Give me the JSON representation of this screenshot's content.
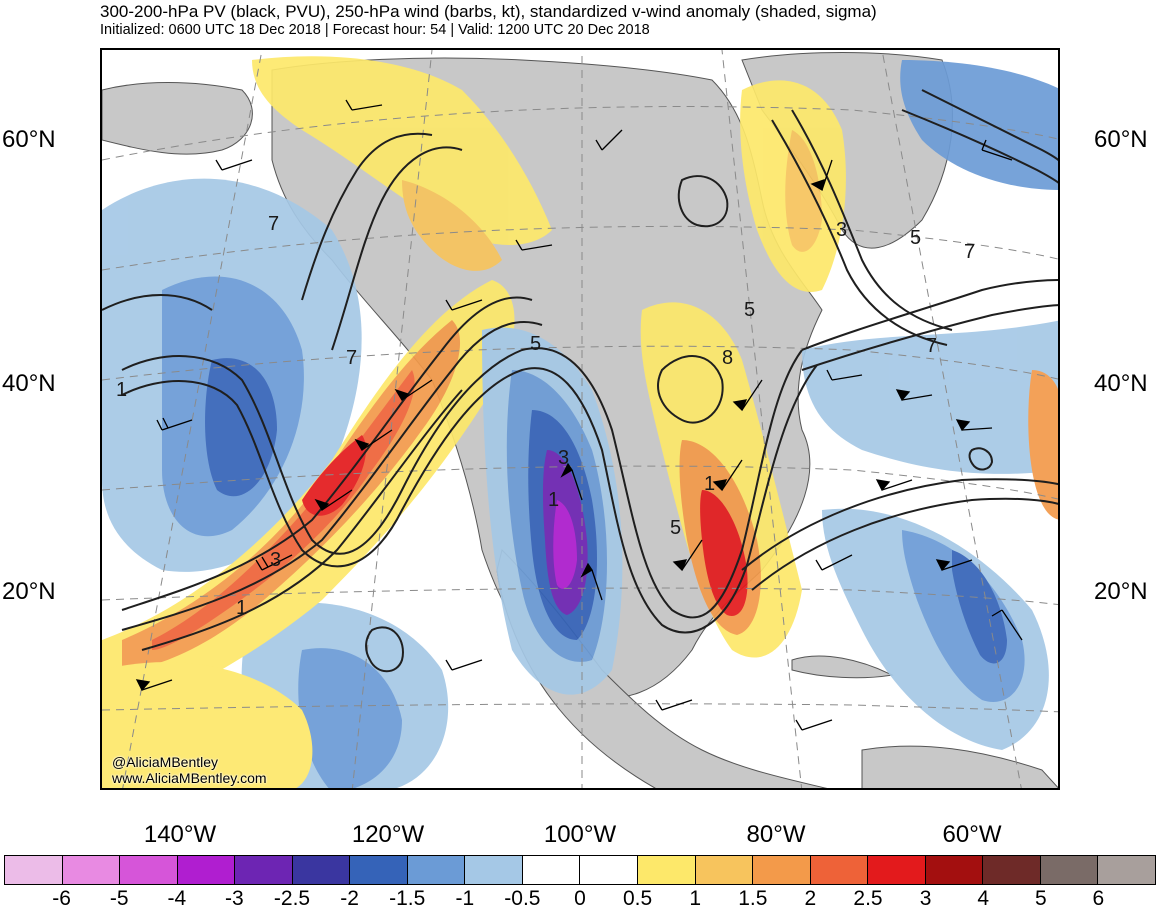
{
  "header": {
    "title": "300-200-hPa PV (black, PVU), 250-hPa wind (barbs, kt), standardized v-wind anomaly (shaded, sigma)",
    "subtitle": "Initialized: 0600 UTC 18 Dec 2018 | Forecast hour: 54 | Valid: 1200 UTC 20 Dec 2018"
  },
  "axes": {
    "lat_left": [
      "60°N",
      "40°N",
      "20°N"
    ],
    "lat_right": [
      "60°N",
      "40°N",
      "20°N"
    ],
    "lon": [
      "140°W",
      "120°W",
      "100°W",
      "80°W",
      "60°W"
    ]
  },
  "contour_labels": [
    "7",
    "1",
    "7",
    "3",
    "1",
    "5",
    "3",
    "1",
    "8",
    "5",
    "1",
    "5",
    "3",
    "5",
    "7",
    "7"
  ],
  "credits": {
    "handle": "@AliciaMBentley",
    "site": "www.AliciaMBentley.com"
  },
  "colorbar": {
    "colors": [
      "#ecbce8",
      "#e88ae2",
      "#d655d9",
      "#b01ed0",
      "#6d25b3",
      "#3a36a0",
      "#3563b8",
      "#6b9bd6",
      "#a5c8e6",
      "#ffffff",
      "#ffffff",
      "#fde86a",
      "#f7c45d",
      "#f39a4a",
      "#ee6238",
      "#e31a1c",
      "#a30f0f",
      "#6e2a28",
      "#7a6b67",
      "#a89f9c"
    ],
    "ticks": [
      "-6",
      "-5",
      "-4",
      "-3",
      "-2.5",
      "-2",
      "-1.5",
      "-1",
      "-0.5",
      "0",
      "0.5",
      "1",
      "1.5",
      "2",
      "2.5",
      "3",
      "4",
      "5",
      "6"
    ]
  },
  "palette": {
    "land_gray": "#c8c8c8",
    "pv_contour": "#1f1f1f"
  }
}
